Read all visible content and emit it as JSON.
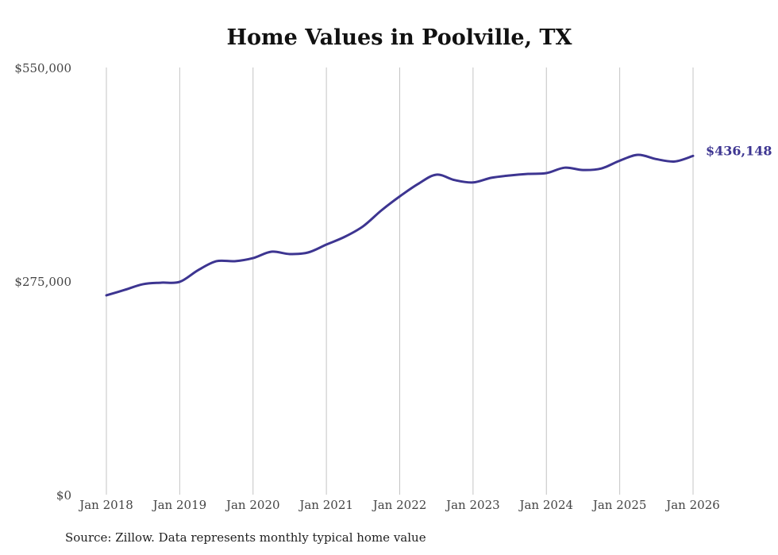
{
  "chart_data": {
    "type": "line",
    "title": "Home Values in Poolville, TX",
    "source": "Source: Zillow. Data represents monthly typical home value",
    "xlabel": "",
    "ylabel": "",
    "ylim": [
      0,
      550000
    ],
    "xlim": [
      2018,
      2026
    ],
    "yticks": [
      {
        "value": 0,
        "label": "$0"
      },
      {
        "value": 275000,
        "label": "$275,000"
      },
      {
        "value": 550000,
        "label": "$550,000"
      }
    ],
    "xticks": [
      {
        "value": 2018,
        "label": "Jan 2018"
      },
      {
        "value": 2019,
        "label": "Jan 2019"
      },
      {
        "value": 2020,
        "label": "Jan 2020"
      },
      {
        "value": 2021,
        "label": "Jan 2021"
      },
      {
        "value": 2022,
        "label": "Jan 2022"
      },
      {
        "value": 2023,
        "label": "Jan 2023"
      },
      {
        "value": 2024,
        "label": "Jan 2024"
      },
      {
        "value": 2025,
        "label": "Jan 2025"
      },
      {
        "value": 2026,
        "label": "Jan 2026"
      }
    ],
    "grid": "vertical",
    "color": "#3d3591",
    "end_label": "$436,148",
    "series": [
      {
        "name": "Typical home value",
        "x": [
          2018,
          2018.25,
          2018.5,
          2018.75,
          2019,
          2019.25,
          2019.5,
          2019.75,
          2020,
          2020.25,
          2020.5,
          2020.75,
          2021,
          2021.25,
          2021.5,
          2021.75,
          2022,
          2022.25,
          2022.5,
          2022.75,
          2023,
          2023.25,
          2023.5,
          2023.75,
          2024,
          2024.25,
          2024.5,
          2024.75,
          2025,
          2025.25,
          2025.5,
          2025.75,
          2026
        ],
        "values": [
          256600,
          263700,
          271000,
          273000,
          274000,
          289000,
          300600,
          300600,
          304600,
          312800,
          309800,
          311800,
          322000,
          332000,
          345500,
          366000,
          384000,
          400000,
          412000,
          405000,
          402000,
          408000,
          411000,
          413000,
          414000,
          421000,
          418000,
          420000,
          430000,
          437500,
          432000,
          429000,
          436148
        ]
      }
    ]
  }
}
